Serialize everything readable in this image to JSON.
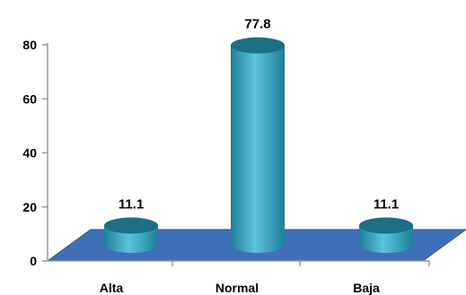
{
  "chart_data": {
    "type": "bar",
    "style": "3d-cylinder",
    "categories": [
      "Alta",
      "Normal",
      "Baja"
    ],
    "values": [
      11.1,
      77.8,
      11.1
    ],
    "data_labels": [
      "11.1",
      "77.8",
      "11.1"
    ],
    "title": "",
    "xlabel": "",
    "ylabel": "",
    "ylim": [
      0,
      80
    ],
    "yticks": [
      0,
      20,
      40,
      60,
      80
    ],
    "ytick_labels": [
      "0",
      "20",
      "40",
      "60",
      "80"
    ],
    "grid": false,
    "legend": "none",
    "colors": {
      "bar": "#1f7f99",
      "bar_highlight": "#5cc3dd",
      "bar_top": "#1c6f86",
      "floor": "#3f6fb7",
      "floor_edge": "#2d5591",
      "axis": "#9a9a9a"
    }
  }
}
